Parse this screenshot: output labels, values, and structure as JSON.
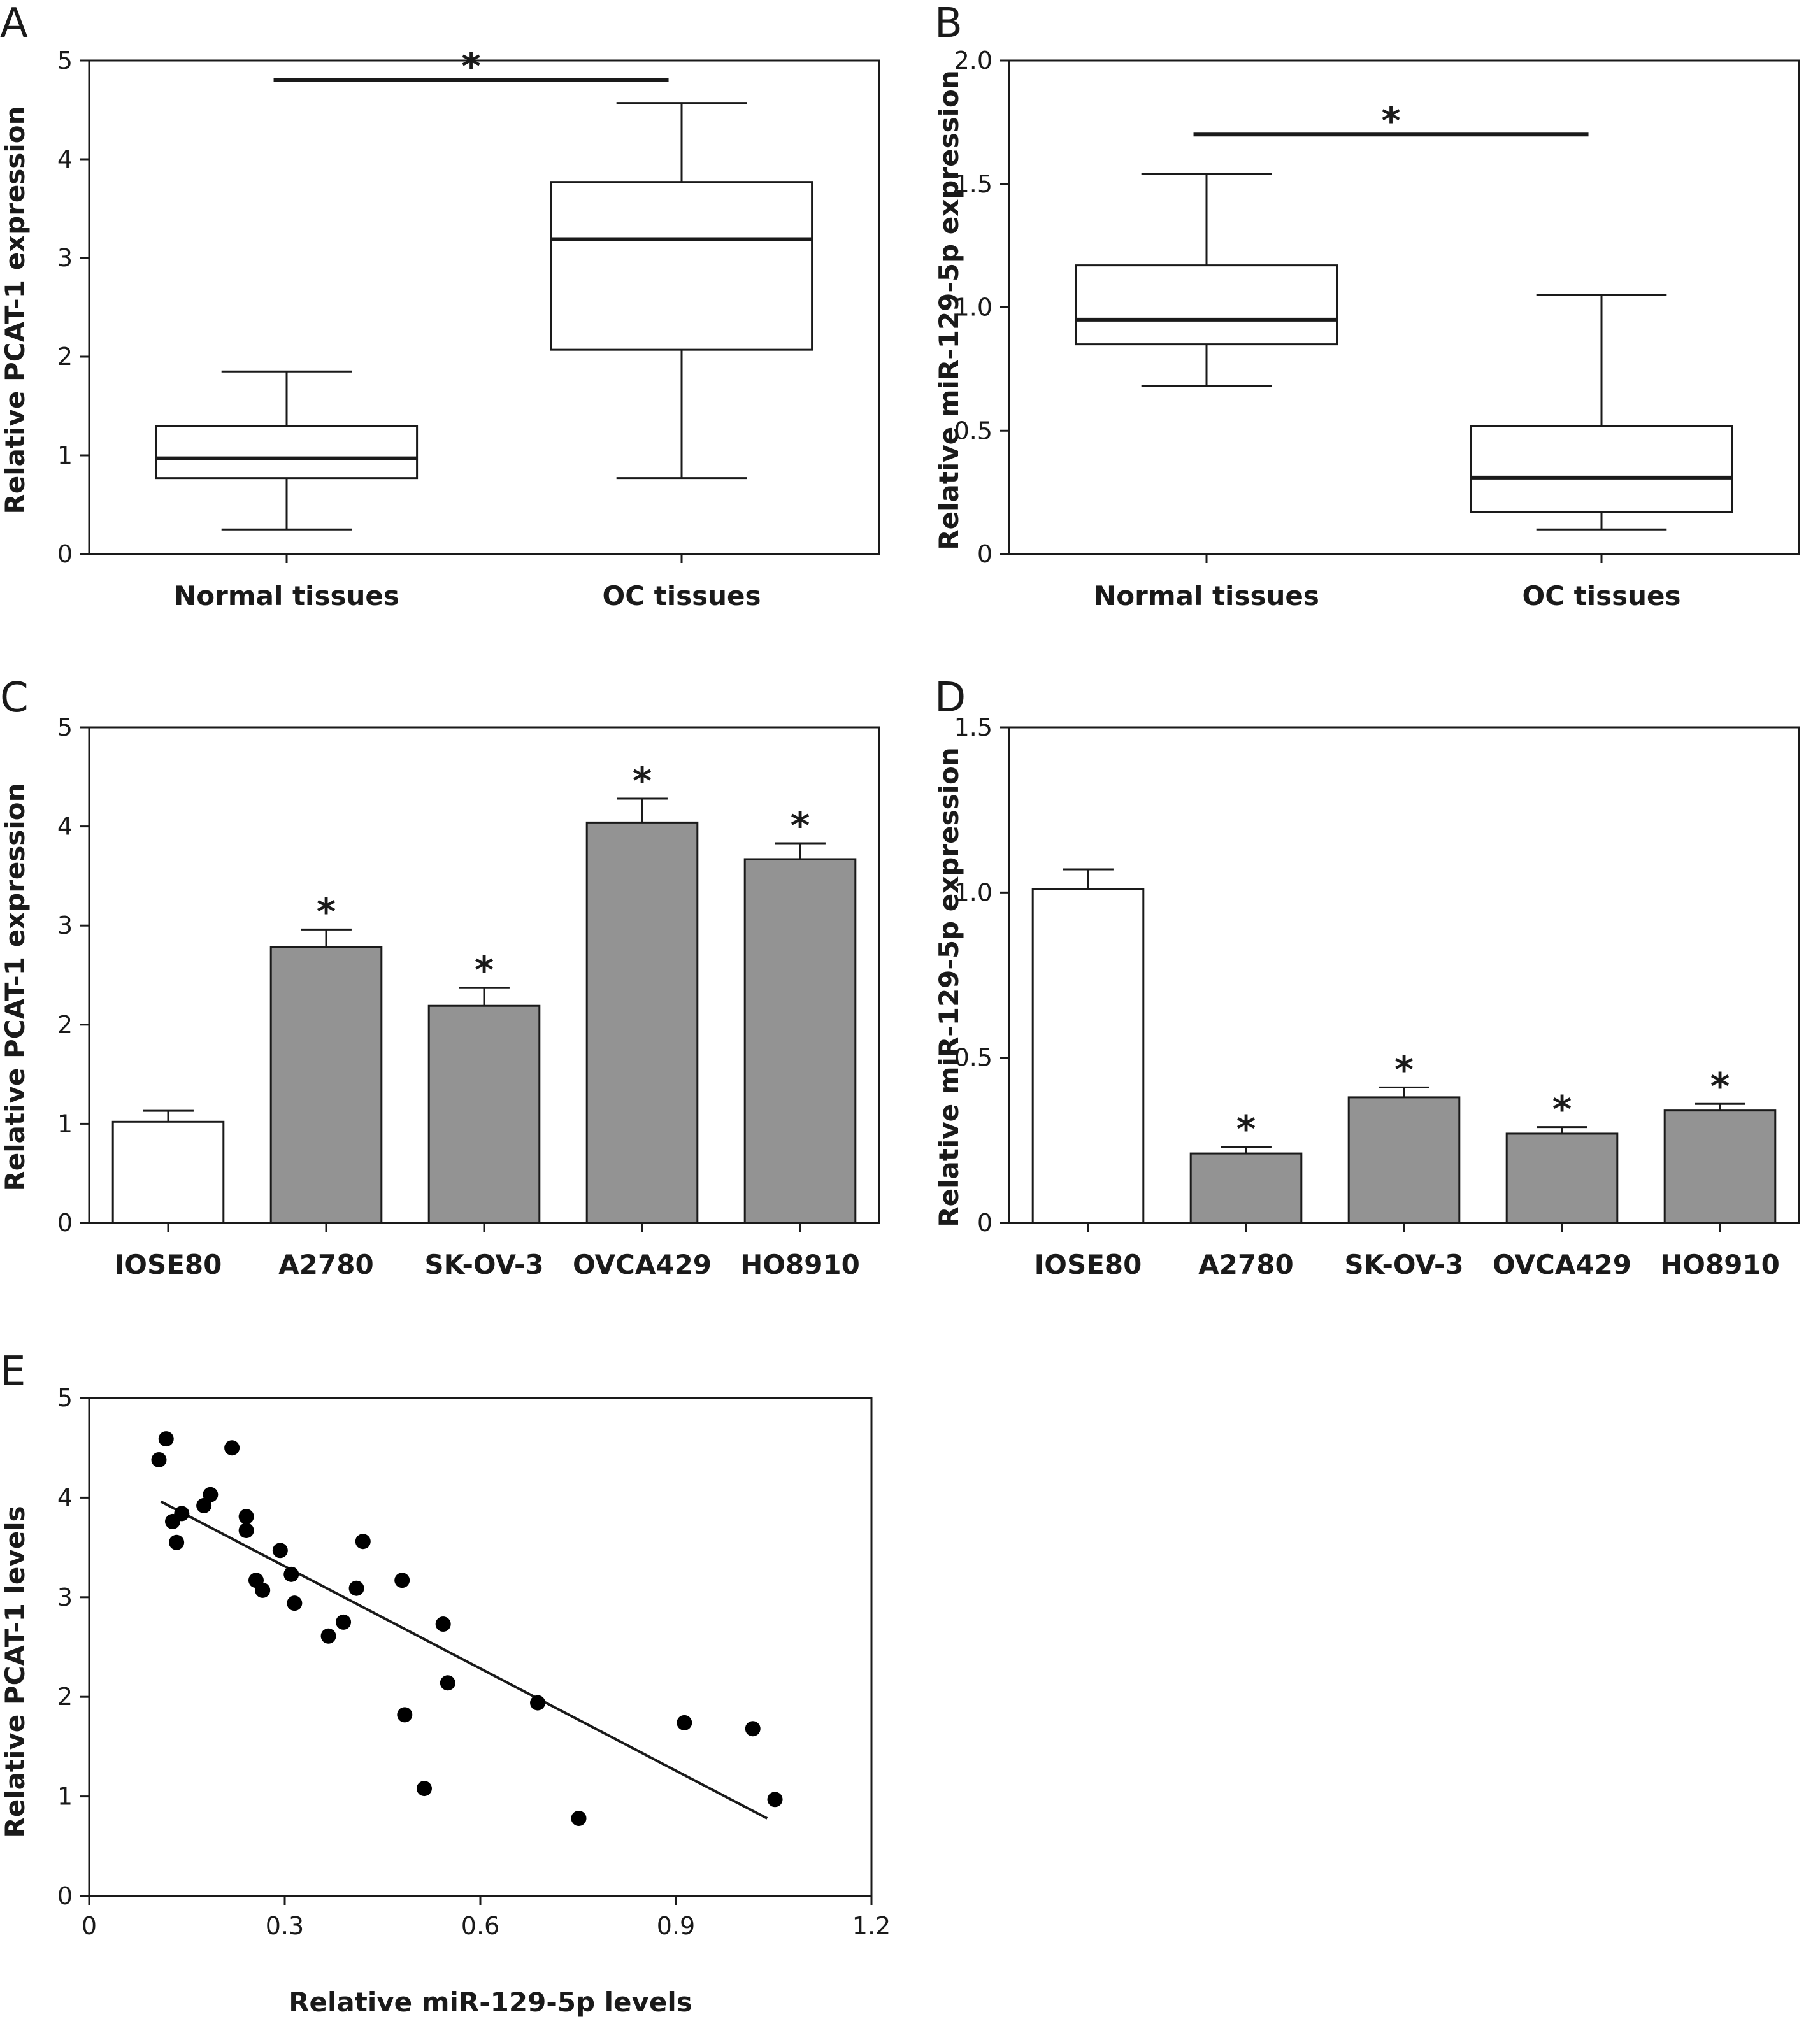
{
  "colors": {
    "axis": "#1a1a1a",
    "bar_control": "#ffffff",
    "bar_cell": "#939393",
    "box_fill": "#ffffff",
    "point": "#000000"
  },
  "chart_data": [
    {
      "panel": "A",
      "type": "box",
      "ylabel": "Relative PCAT-1 expression",
      "ylim": [
        0,
        5
      ],
      "yticks": [
        0,
        1,
        2,
        3,
        4,
        5
      ],
      "categories": [
        "Normal tissues",
        "OC tissues"
      ],
      "boxes": [
        {
          "min": 0.25,
          "q1": 0.77,
          "median": 0.97,
          "q3": 1.3,
          "max": 1.85
        },
        {
          "min": 0.77,
          "q1": 2.07,
          "median": 3.19,
          "q3": 3.77,
          "max": 4.57
        }
      ],
      "significance": [
        {
          "from": 0,
          "to": 1,
          "y": 4.8,
          "label": "*"
        }
      ]
    },
    {
      "panel": "B",
      "type": "box",
      "ylabel": "Relative miR-129-5p expression",
      "ylim": [
        0,
        2.0
      ],
      "yticks": [
        "0",
        "0.5",
        "1.0",
        "1.5",
        "2.0"
      ],
      "categories": [
        "Normal tissues",
        "OC tissues"
      ],
      "boxes": [
        {
          "min": 0.68,
          "q1": 0.85,
          "median": 0.95,
          "q3": 1.17,
          "max": 1.54
        },
        {
          "min": 0.1,
          "q1": 0.17,
          "median": 0.31,
          "q3": 0.52,
          "max": 1.05
        }
      ],
      "significance": [
        {
          "from": 0,
          "to": 1,
          "y": 1.7,
          "label": "*"
        }
      ]
    },
    {
      "panel": "C",
      "type": "bar",
      "ylabel": "Relative PCAT-1 expression",
      "ylim": [
        0,
        5
      ],
      "yticks": [
        0,
        1,
        2,
        3,
        4,
        5
      ],
      "categories": [
        "IOSE80",
        "A2780",
        "SK-OV-3",
        "OVCA429",
        "HO8910"
      ],
      "values": [
        1.02,
        2.78,
        2.19,
        4.04,
        3.67
      ],
      "errors": [
        0.11,
        0.18,
        0.18,
        0.24,
        0.16
      ],
      "stars": [
        "",
        "*",
        "*",
        "*",
        "*"
      ]
    },
    {
      "panel": "D",
      "type": "bar",
      "ylabel": "Relative miR-129-5p expression",
      "ylim": [
        0,
        1.5
      ],
      "yticks": [
        "0",
        "0.5",
        "1.0",
        "1.5"
      ],
      "categories": [
        "IOSE80",
        "A2780",
        "SK-OV-3",
        "OVCA429",
        "HO8910"
      ],
      "values": [
        1.01,
        0.21,
        0.38,
        0.27,
        0.34
      ],
      "errors": [
        0.06,
        0.02,
        0.03,
        0.02,
        0.02
      ],
      "stars": [
        "",
        "*",
        "*",
        "*",
        "*"
      ]
    },
    {
      "panel": "E",
      "type": "scatter",
      "xlabel": "Relative miR-129-5p levels",
      "ylabel": "Relative PCAT-1 levels",
      "xlim": [
        0,
        1.2
      ],
      "ylim": [
        0,
        5
      ],
      "xticks": [
        "0",
        "0.3",
        "0.6",
        "0.9",
        "1.2"
      ],
      "yticks": [
        "0",
        "1",
        "2",
        "3",
        "4",
        "5"
      ],
      "points": [
        [
          0.107,
          4.38
        ],
        [
          0.118,
          4.59
        ],
        [
          0.128,
          3.76
        ],
        [
          0.134,
          3.55
        ],
        [
          0.142,
          3.84
        ],
        [
          0.176,
          3.92
        ],
        [
          0.186,
          4.03
        ],
        [
          0.219,
          4.5
        ],
        [
          0.241,
          3.81
        ],
        [
          0.241,
          3.67
        ],
        [
          0.256,
          3.17
        ],
        [
          0.266,
          3.07
        ],
        [
          0.293,
          3.47
        ],
        [
          0.31,
          3.23
        ],
        [
          0.315,
          2.94
        ],
        [
          0.367,
          2.61
        ],
        [
          0.39,
          2.75
        ],
        [
          0.41,
          3.09
        ],
        [
          0.42,
          3.56
        ],
        [
          0.48,
          3.17
        ],
        [
          0.484,
          1.82
        ],
        [
          0.514,
          1.08
        ],
        [
          0.543,
          2.73
        ],
        [
          0.55,
          2.14
        ],
        [
          0.688,
          1.94
        ],
        [
          0.751,
          0.78
        ],
        [
          0.913,
          1.74
        ],
        [
          1.018,
          1.68
        ],
        [
          1.052,
          0.97
        ]
      ],
      "fit_line": {
        "x": [
          0.11,
          1.04
        ],
        "y": [
          3.96,
          0.78
        ]
      }
    }
  ]
}
